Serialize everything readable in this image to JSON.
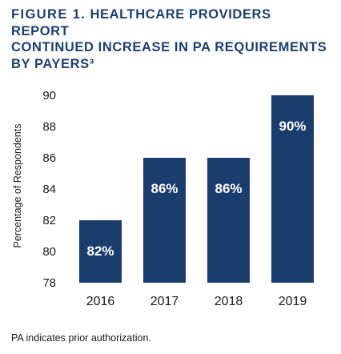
{
  "figure": {
    "label": "FIGURE 1.",
    "title_line1": "HEALTHCARE PROVIDERS REPORT",
    "title_line2": "CONTINUED INCREASE IN PA REQUIREMENTS",
    "title_line3": "BY PAYERS³"
  },
  "footnote": "PA indicates prior authorization.",
  "colors": {
    "bar": "#1b3d6d",
    "bar_label": "#ffffff",
    "title": "#1e3f6e"
  },
  "chart_data": {
    "type": "bar",
    "title": "FIGURE 1. HEALTHCARE PROVIDERS REPORT CONTINUED INCREASE IN PA REQUIREMENTS BY PAYERS³",
    "xlabel": "",
    "ylabel": "Percentage of Respondents",
    "categories": [
      "2016",
      "2017",
      "2018",
      "2019"
    ],
    "values": [
      82,
      86,
      86,
      90
    ],
    "data_labels": [
      "82%",
      "86%",
      "86%",
      "90%"
    ],
    "ylim": [
      78,
      90
    ],
    "yticks": [
      78,
      80,
      82,
      84,
      86,
      88,
      90
    ],
    "grid": false,
    "legend": "none"
  }
}
